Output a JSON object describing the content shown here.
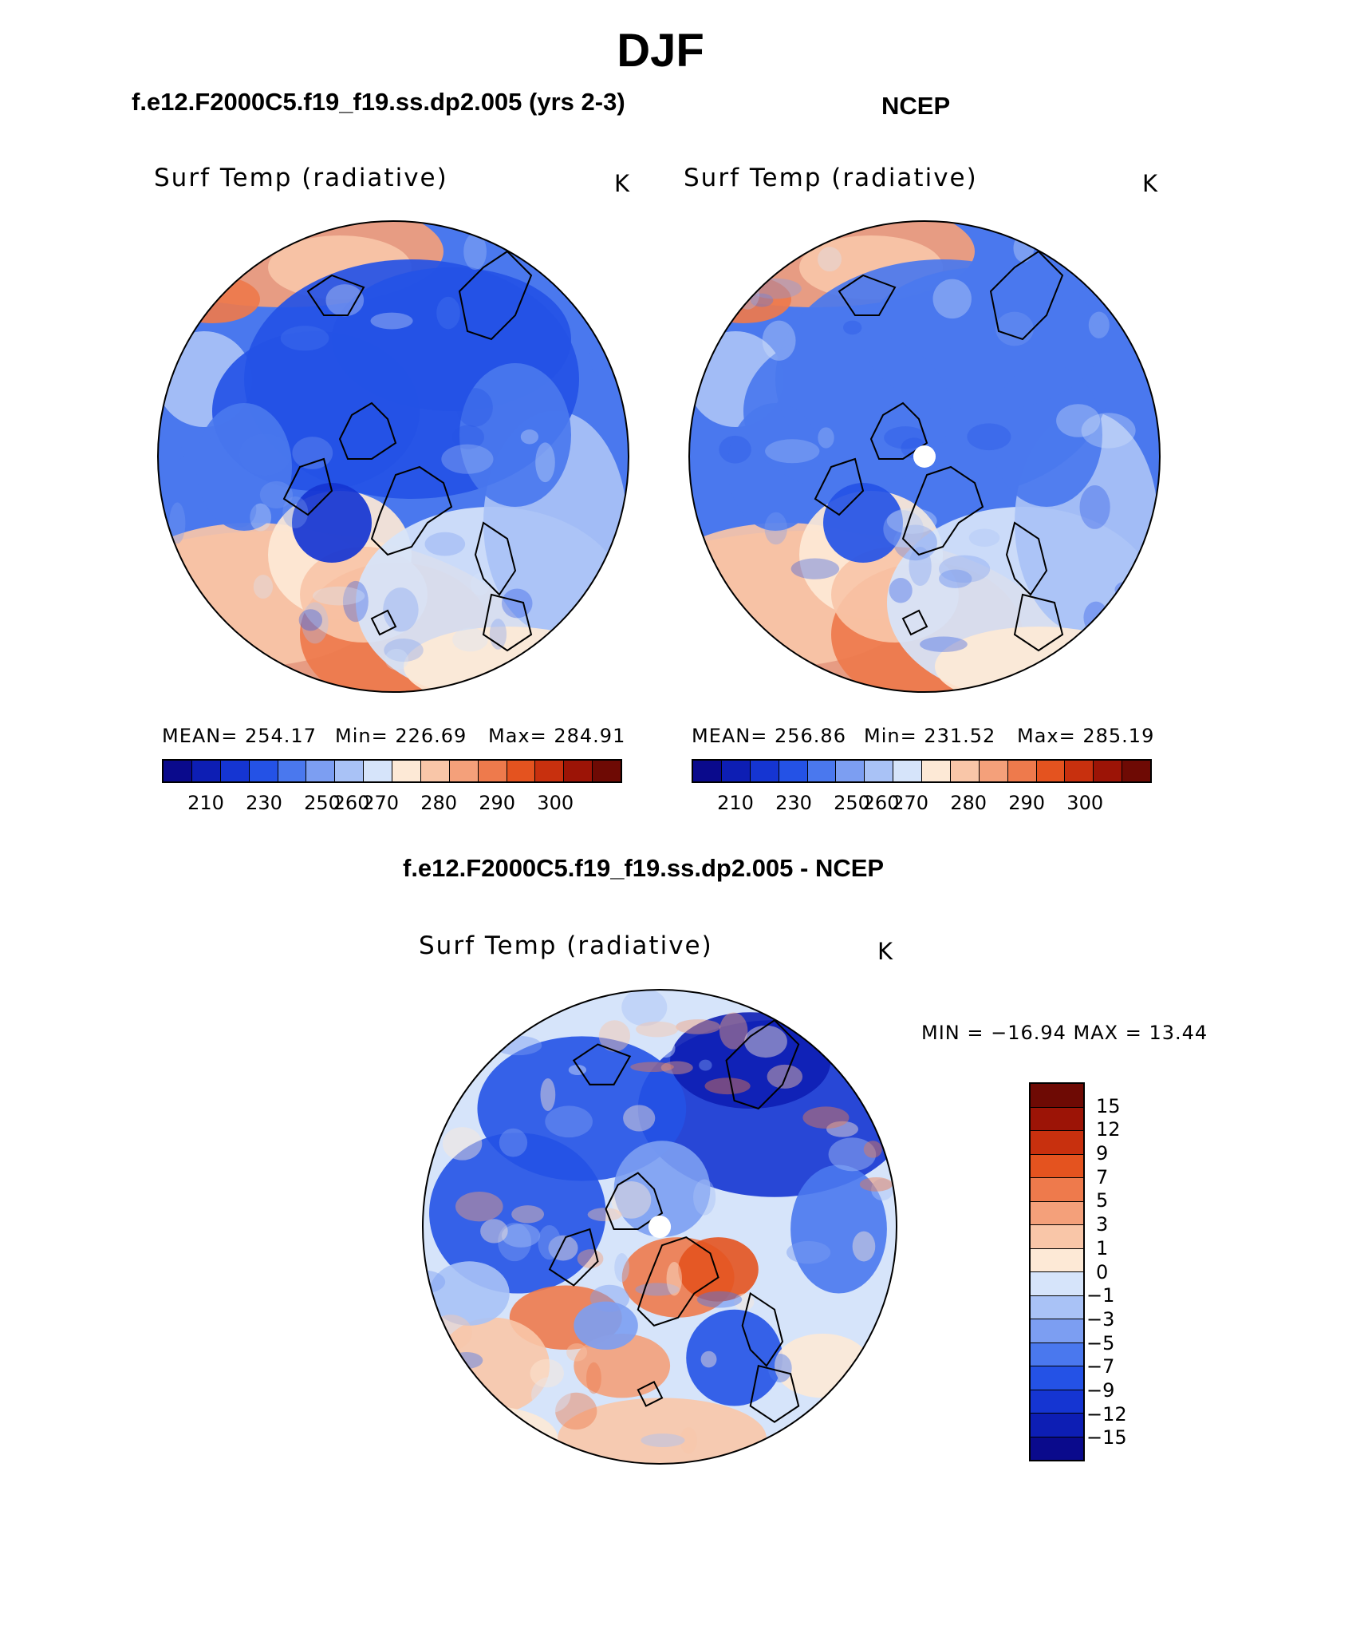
{
  "page": {
    "title": "DJF",
    "top_left_subtitle": "f.e12.F2000C5.f19_f19.ss.dp2.005 (yrs 2-3)",
    "top_right_subtitle": "NCEP",
    "bottom_subtitle": "f.e12.F2000C5.f19_f19.ss.dp2.005 - NCEP"
  },
  "colors": {
    "abs_scale": [
      "#0a0a8c",
      "#0d1eb4",
      "#1535d2",
      "#2452e6",
      "#4a78ee",
      "#7c9ef2",
      "#a9c2f6",
      "#d6e4fa",
      "#fde9d6",
      "#f9c6a8",
      "#f4a07a",
      "#ee7a4c",
      "#e4531f",
      "#c8300e",
      "#9c1406",
      "#6e0a04"
    ],
    "diff_scale": [
      "#0a0a8c",
      "#0d1eb4",
      "#1535d2",
      "#2452e6",
      "#4a78ee",
      "#7c9ef2",
      "#a9c2f6",
      "#d6e4fa",
      "#fde9d6",
      "#f9c6a8",
      "#f4a07a",
      "#ee7a4c",
      "#e4531f",
      "#c8300e",
      "#9c1406",
      "#6e0a04"
    ],
    "coastline": "#000000",
    "missing": "#ffffff"
  },
  "chart_data": [
    {
      "type": "heatmap",
      "projection": "north-polar-stereographic",
      "title": "f.e12.F2000C5.f19_f19.ss.dp2.005 (yrs 2-3)",
      "field_label": "Surf Temp (radiative)",
      "units": "K",
      "stats": {
        "mean": 254.17,
        "min": 226.69,
        "max": 284.91
      },
      "stats_text": {
        "mean": "MEAN= 254.17",
        "min": "Min= 226.69",
        "max": "Max= 284.91"
      },
      "contour_levels": [
        210,
        220,
        230,
        240,
        250,
        255,
        260,
        265,
        270,
        275,
        280,
        285,
        290,
        295,
        300
      ],
      "colorbar_ticks": [
        "210",
        "230",
        "250",
        "260",
        "270",
        "280",
        "290",
        "300"
      ],
      "colorbar_orientation": "horizontal"
    },
    {
      "type": "heatmap",
      "projection": "north-polar-stereographic",
      "title": "NCEP",
      "field_label": "Surf Temp (radiative)",
      "units": "K",
      "stats": {
        "mean": 256.86,
        "min": 231.52,
        "max": 285.19
      },
      "stats_text": {
        "mean": "MEAN= 256.86",
        "min": "Min= 231.52",
        "max": "Max= 285.19"
      },
      "contour_levels": [
        210,
        220,
        230,
        240,
        250,
        255,
        260,
        265,
        270,
        275,
        280,
        285,
        290,
        295,
        300
      ],
      "colorbar_ticks": [
        "210",
        "230",
        "250",
        "260",
        "270",
        "280",
        "290",
        "300"
      ],
      "colorbar_orientation": "horizontal"
    },
    {
      "type": "heatmap",
      "projection": "north-polar-stereographic",
      "title": "f.e12.F2000C5.f19_f19.ss.dp2.005 - NCEP",
      "field_label": "Surf Temp (radiative)",
      "units": "K",
      "stats": {
        "min": -16.94,
        "max": 13.44
      },
      "stats_text": "MIN = −16.94 MAX =   13.44",
      "contour_levels": [
        -15,
        -12,
        -9,
        -7,
        -5,
        -3,
        -1,
        0,
        1,
        3,
        5,
        7,
        9,
        12,
        15
      ],
      "colorbar_ticks": [
        "15",
        "12",
        "9",
        "7",
        "5",
        "3",
        "1",
        "0",
        "−1",
        "−3",
        "−5",
        "−7",
        "−9",
        "−12",
        "−15"
      ],
      "colorbar_orientation": "vertical"
    }
  ]
}
